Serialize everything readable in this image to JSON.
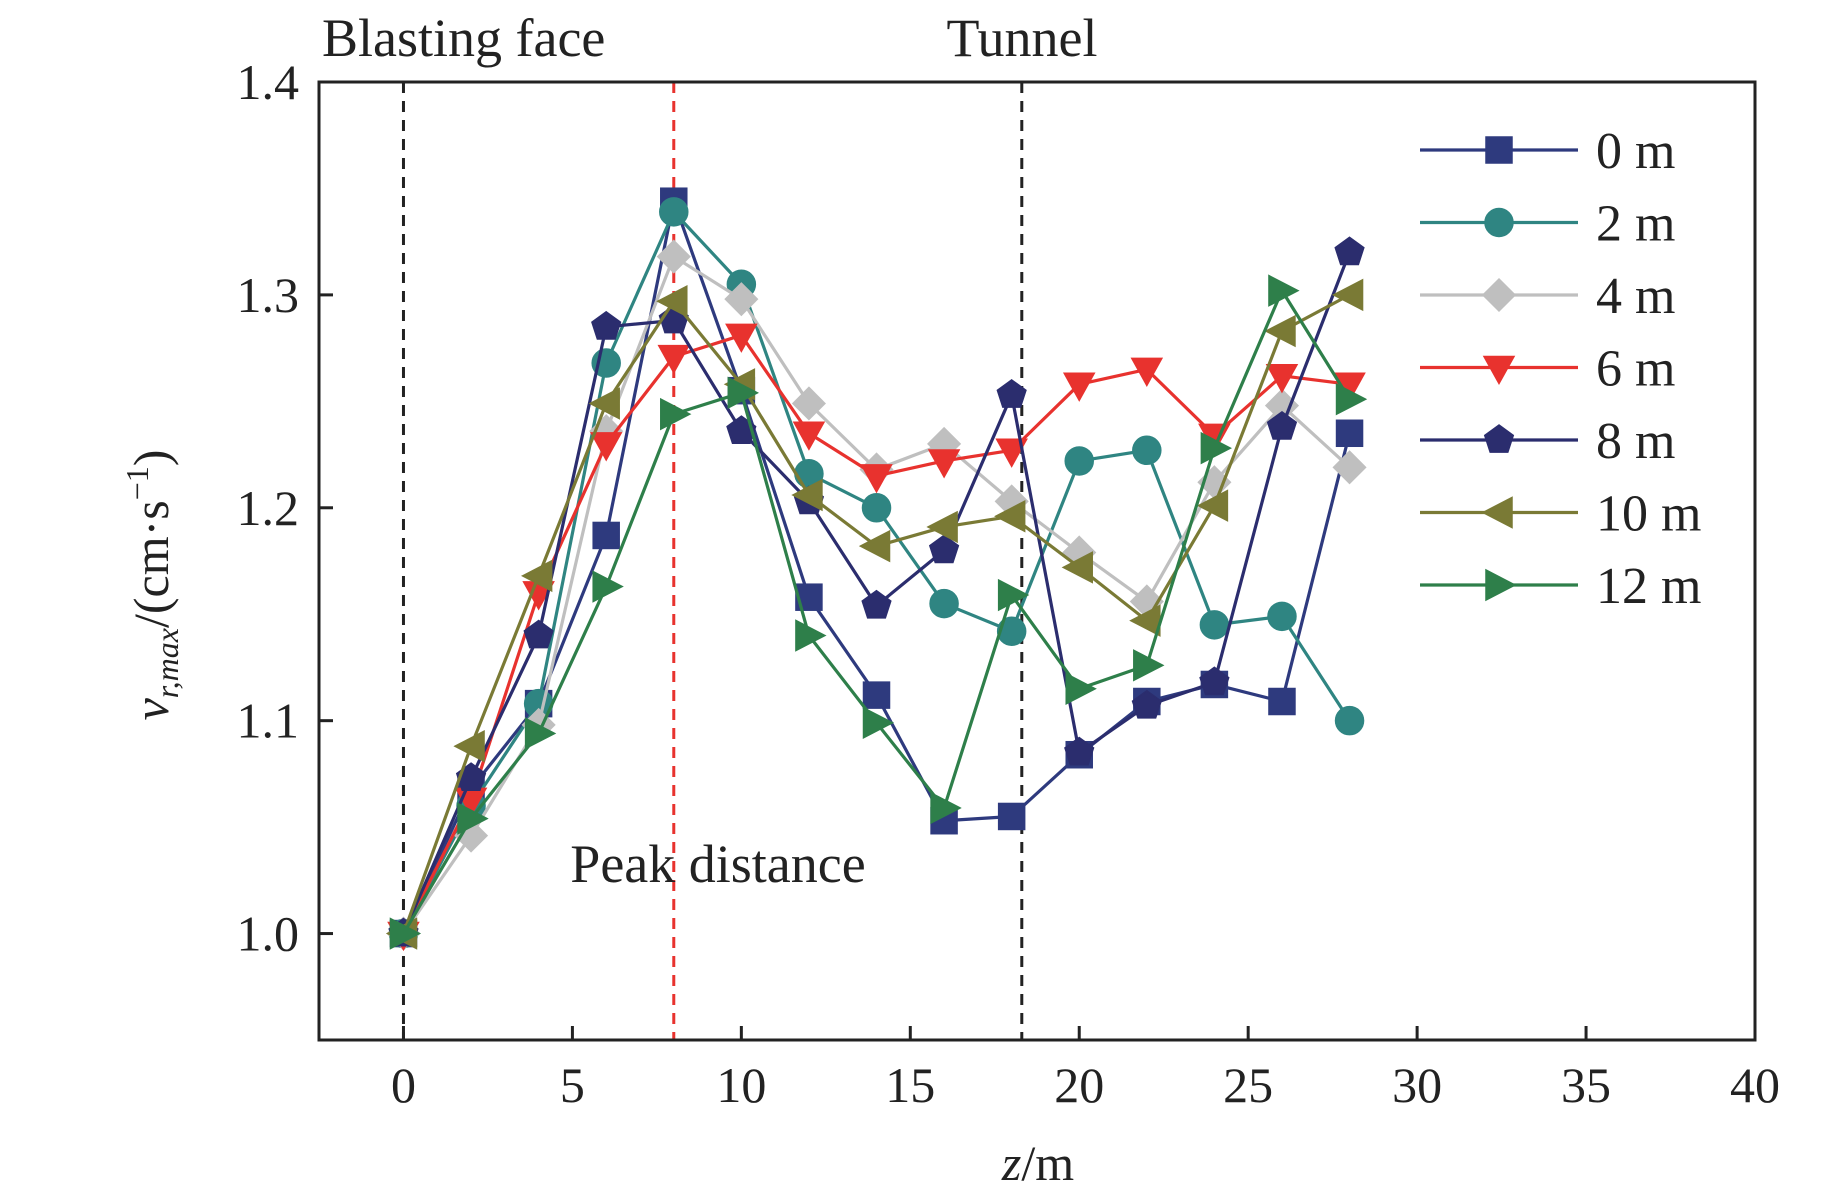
{
  "chart_data": {
    "type": "line",
    "xlabel": "z/m",
    "ylabel": "v_r,max/(cm·s⁻¹)",
    "ylabel_parts": {
      "v": "v",
      "sub": "r,max",
      "slash": "/(cm·s",
      "sup": "−1",
      "close": ")"
    },
    "xlabel_parts": {
      "var": "z",
      "unit": "/m"
    },
    "xlim": [
      -2.5,
      40
    ],
    "ylim": [
      0.95,
      1.4
    ],
    "xticks": [
      0,
      5,
      10,
      15,
      20,
      25,
      30,
      35,
      40
    ],
    "yticks": [
      1.0,
      1.1,
      1.2,
      1.3,
      1.4
    ],
    "xtick_labels": [
      "0",
      "5",
      "10",
      "15",
      "20",
      "25",
      "30",
      "35",
      "40"
    ],
    "ytick_labels": [
      "1.0",
      "1.1",
      "1.2",
      "1.3",
      "1.4"
    ],
    "grid": false,
    "legend_position": "top-right",
    "annotations": {
      "blasting_face": {
        "text": "Blasting face",
        "x": 0
      },
      "tunnel": {
        "text": "Tunnel",
        "x": 18.3
      },
      "peak_distance": {
        "text": "Peak distance",
        "x": 8
      }
    },
    "x": [
      0,
      2,
      4,
      6,
      8,
      10,
      12,
      14,
      16,
      18,
      20,
      22,
      24,
      26,
      28
    ],
    "series": [
      {
        "name": "0 m",
        "color": "#2e3a7e",
        "marker": "square",
        "values": [
          1.0,
          1.068,
          1.108,
          1.187,
          1.344,
          1.255,
          1.158,
          1.112,
          1.053,
          1.055,
          1.084,
          1.109,
          1.117,
          1.109,
          1.235
        ]
      },
      {
        "name": "2 m",
        "color": "#2f8582",
        "marker": "circle",
        "values": [
          1.0,
          1.06,
          1.108,
          1.268,
          1.339,
          1.305,
          1.216,
          1.2,
          1.155,
          1.142,
          1.222,
          1.227,
          1.145,
          1.149,
          1.1
        ]
      },
      {
        "name": "4 m",
        "color": "#bfbfbf",
        "marker": "diamond",
        "values": [
          1.0,
          1.046,
          1.098,
          1.236,
          1.318,
          1.298,
          1.249,
          1.218,
          1.23,
          1.203,
          1.179,
          1.156,
          1.212,
          1.248,
          1.219
        ]
      },
      {
        "name": "6 m",
        "color": "#e8322e",
        "marker": "triangle-down",
        "values": [
          1.0,
          1.063,
          1.16,
          1.23,
          1.271,
          1.281,
          1.235,
          1.215,
          1.222,
          1.227,
          1.258,
          1.265,
          1.234,
          1.262,
          1.258
        ]
      },
      {
        "name": "8 m",
        "color": "#2b2d6e",
        "marker": "pentagon",
        "values": [
          1.0,
          1.073,
          1.14,
          1.285,
          1.288,
          1.236,
          1.203,
          1.154,
          1.18,
          1.253,
          1.085,
          1.107,
          1.118,
          1.238,
          1.32
        ]
      },
      {
        "name": "10 m",
        "color": "#7a7a35",
        "marker": "triangle-left",
        "values": [
          1.0,
          1.088,
          1.168,
          1.249,
          1.297,
          1.258,
          1.206,
          1.182,
          1.191,
          1.196,
          1.172,
          1.147,
          1.201,
          1.283,
          1.3
        ]
      },
      {
        "name": "12 m",
        "color": "#2e7f4a",
        "marker": "triangle-right",
        "values": [
          1.0,
          1.054,
          1.094,
          1.163,
          1.244,
          1.254,
          1.14,
          1.099,
          1.059,
          1.159,
          1.115,
          1.126,
          1.228,
          1.302,
          1.251
        ]
      }
    ]
  }
}
